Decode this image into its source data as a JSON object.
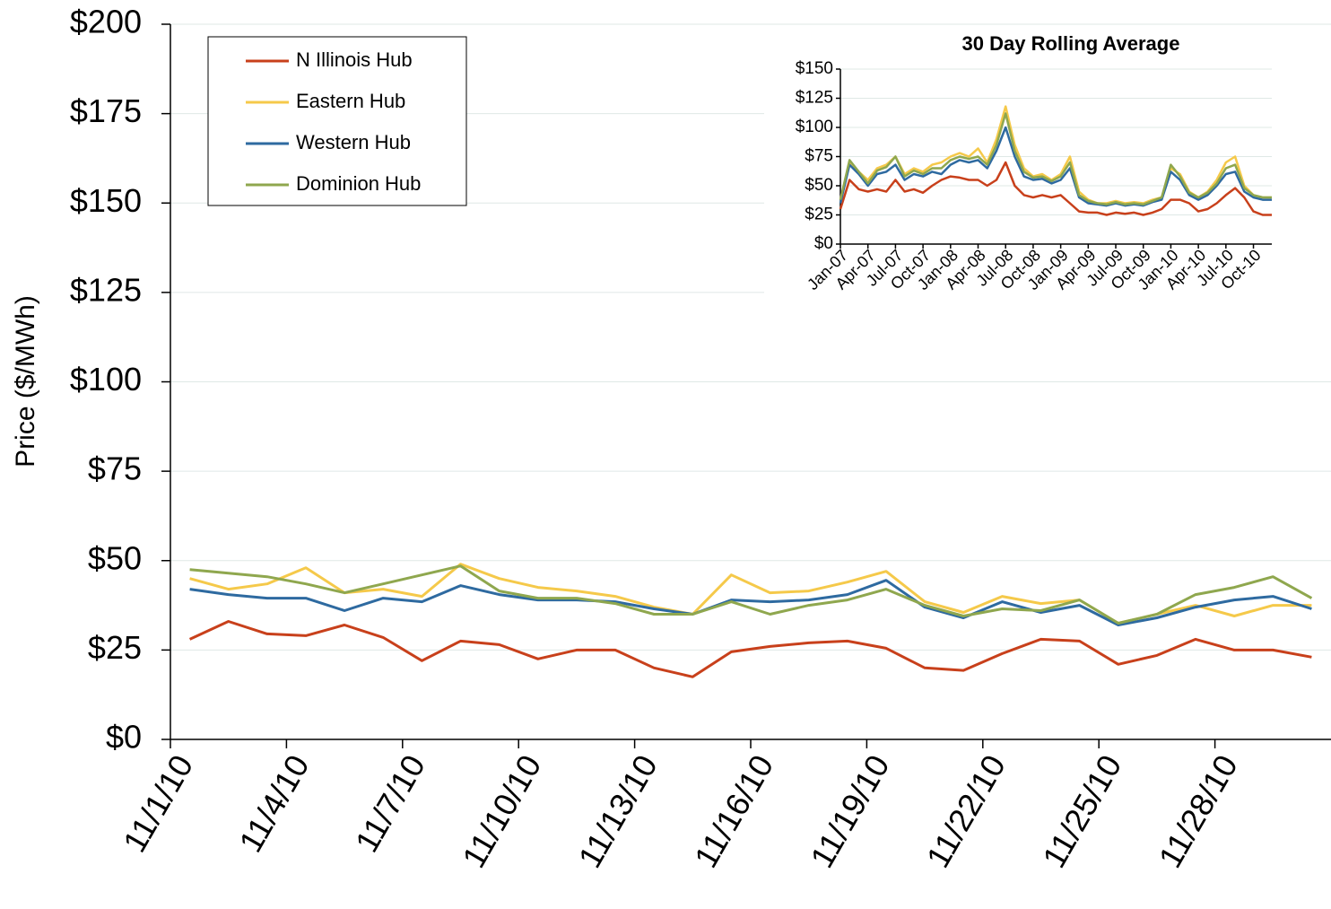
{
  "chart_data": [
    {
      "type": "line",
      "y_label": "Price ($/MWh)",
      "categories": [
        "11/1/10",
        null,
        null,
        "11/4/10",
        null,
        null,
        "11/7/10",
        null,
        null,
        "11/10/10",
        null,
        null,
        "11/13/10",
        null,
        null,
        "11/16/10",
        null,
        null,
        "11/19/10",
        null,
        null,
        "11/22/10",
        null,
        null,
        "11/25/10",
        null,
        null,
        "11/28/10",
        null,
        null
      ],
      "series": [
        {
          "name": "N Illinois Hub",
          "color": "#c8401b",
          "values": [
            28,
            33,
            29.5,
            29,
            32,
            28.5,
            22,
            27.5,
            26.5,
            22.5,
            25,
            25,
            20,
            17.5,
            24.5,
            26,
            27,
            27.5,
            25.5,
            20,
            19.3,
            24,
            28,
            27.5,
            21,
            23.5,
            28,
            25,
            25,
            23
          ]
        },
        {
          "name": "Eastern Hub",
          "color": "#f5c94a",
          "values": [
            45,
            42,
            43.5,
            48,
            41,
            42,
            40,
            49,
            45,
            42.5,
            41.5,
            40,
            37,
            35,
            46,
            41,
            41.5,
            44,
            47,
            38.5,
            35.5,
            40,
            38,
            39,
            32.5,
            35,
            37.5,
            34.5,
            37.5,
            37.5
          ]
        },
        {
          "name": "Western Hub",
          "color": "#2e6aa0",
          "values": [
            42,
            40.5,
            39.5,
            39.5,
            36,
            39.5,
            38.5,
            43,
            40.5,
            39,
            39,
            38.5,
            36.5,
            35,
            39,
            38.5,
            39,
            40.5,
            44.5,
            37,
            34,
            38.5,
            35.5,
            37.5,
            32,
            34,
            37,
            39,
            40,
            36.5
          ]
        },
        {
          "name": "Dominion Hub",
          "color": "#8fa74e",
          "values": [
            47.5,
            46.5,
            45.5,
            43.5,
            41,
            43.5,
            46,
            48.5,
            41.5,
            39.5,
            39.5,
            38,
            35,
            35,
            38.5,
            35,
            37.5,
            39,
            42,
            37.5,
            34.5,
            36.5,
            36,
            39,
            32.5,
            35,
            40.5,
            42.5,
            45.5,
            39.5
          ]
        }
      ],
      "ylim": [
        0,
        200
      ],
      "yticks": [
        {
          "value": 0,
          "label": "$0"
        },
        {
          "value": 25,
          "label": "$25"
        },
        {
          "value": 50,
          "label": "$50"
        },
        {
          "value": 75,
          "label": "$75"
        },
        {
          "value": 100,
          "label": "$100"
        },
        {
          "value": 125,
          "label": "$125"
        },
        {
          "value": 150,
          "label": "$150"
        },
        {
          "value": 175,
          "label": "$175"
        },
        {
          "value": 200,
          "label": "$200"
        }
      ],
      "grid": true,
      "legend": "upper left"
    },
    {
      "type": "line",
      "title": "30 Day Rolling Average",
      "categories": [
        "Jan-07",
        null,
        null,
        "Apr-07",
        null,
        null,
        "Jul-07",
        null,
        null,
        "Oct-07",
        null,
        null,
        "Jan-08",
        null,
        null,
        "Apr-08",
        null,
        null,
        "Jul-08",
        null,
        null,
        "Oct-08",
        null,
        null,
        "Jan-09",
        null,
        null,
        "Apr-09",
        null,
        null,
        "Jul-09",
        null,
        null,
        "Oct-09",
        null,
        null,
        "Jan-10",
        null,
        null,
        "Apr-10",
        null,
        null,
        "Jul-10",
        null,
        null,
        "Oct-10",
        null,
        null
      ],
      "series": [
        {
          "color": "#c8401b",
          "values": [
            30,
            55,
            47,
            45,
            47,
            45,
            55,
            45,
            47,
            44,
            50,
            55,
            58,
            57,
            55,
            55,
            50,
            55,
            70,
            50,
            42,
            40,
            42,
            40,
            42,
            35,
            28,
            27,
            27,
            25,
            27,
            26,
            27,
            25,
            27,
            30,
            38,
            38,
            35,
            28,
            30,
            35,
            42,
            48,
            40,
            28,
            25,
            25
          ]
        },
        {
          "color": "#f5c94a",
          "values": [
            38,
            70,
            62,
            55,
            65,
            68,
            75,
            60,
            65,
            62,
            68,
            70,
            75,
            78,
            75,
            82,
            70,
            90,
            118,
            85,
            65,
            58,
            60,
            55,
            60,
            75,
            45,
            38,
            35,
            35,
            37,
            35,
            36,
            35,
            38,
            40,
            65,
            60,
            45,
            40,
            45,
            55,
            70,
            75,
            50,
            42,
            40,
            40
          ]
        },
        {
          "color": "#2e6aa0",
          "values": [
            35,
            68,
            60,
            50,
            60,
            62,
            68,
            55,
            60,
            58,
            62,
            60,
            68,
            72,
            70,
            72,
            65,
            80,
            100,
            75,
            58,
            55,
            56,
            52,
            55,
            65,
            40,
            35,
            34,
            33,
            35,
            33,
            34,
            33,
            36,
            38,
            62,
            55,
            42,
            38,
            42,
            50,
            60,
            62,
            45,
            40,
            38,
            38
          ]
        },
        {
          "color": "#8fa74e",
          "values": [
            38,
            72,
            62,
            52,
            63,
            66,
            75,
            58,
            63,
            60,
            65,
            65,
            72,
            75,
            73,
            75,
            68,
            85,
            112,
            80,
            62,
            57,
            58,
            54,
            58,
            70,
            42,
            37,
            35,
            34,
            36,
            34,
            35,
            34,
            37,
            40,
            68,
            58,
            44,
            40,
            44,
            52,
            65,
            68,
            48,
            42,
            40,
            40
          ]
        }
      ],
      "ylim": [
        0,
        150
      ],
      "yticks": [
        {
          "value": 0,
          "label": "$0"
        },
        {
          "value": 25,
          "label": "$25"
        },
        {
          "value": 50,
          "label": "$50"
        },
        {
          "value": 75,
          "label": "$75"
        },
        {
          "value": 100,
          "label": "$100"
        },
        {
          "value": 125,
          "label": "$125"
        },
        {
          "value": 150,
          "label": "$150"
        }
      ],
      "grid": true
    }
  ]
}
